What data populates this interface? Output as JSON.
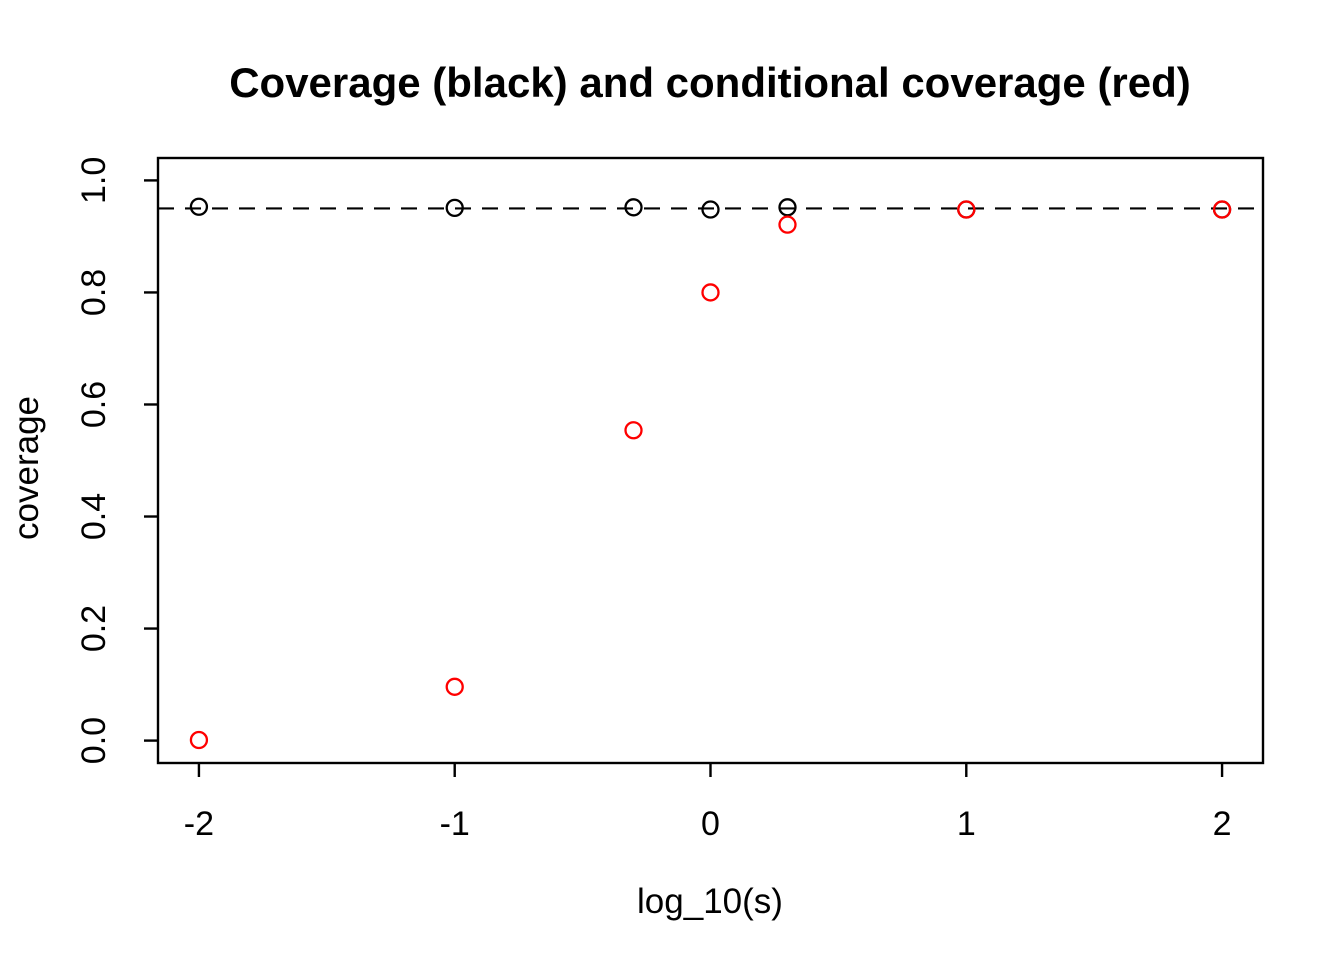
{
  "page": {
    "background_color": "#ffffff"
  },
  "chart_data": {
    "type": "scatter",
    "title": "Coverage (black) and conditional coverage (red)",
    "xlabel": "log_10(s)",
    "ylabel": "coverage",
    "xlim": [
      -2.16,
      2.16
    ],
    "ylim": [
      -0.04,
      1.04
    ],
    "grid": false,
    "legend_position": "none",
    "marker": "open-circle",
    "axis_color": "#000000",
    "x_ticks": [
      {
        "value": -2,
        "label": "-2"
      },
      {
        "value": -1,
        "label": "-1"
      },
      {
        "value": 0,
        "label": "0"
      },
      {
        "value": 1,
        "label": "1"
      },
      {
        "value": 2,
        "label": "2"
      }
    ],
    "y_ticks": [
      {
        "value": 0.0,
        "label": "0.0"
      },
      {
        "value": 0.2,
        "label": "0.2"
      },
      {
        "value": 0.4,
        "label": "0.4"
      },
      {
        "value": 0.6,
        "label": "0.6"
      },
      {
        "value": 0.8,
        "label": "0.8"
      },
      {
        "value": 1.0,
        "label": "1.0"
      }
    ],
    "reference_line": {
      "y": 0.95,
      "style": "dashed",
      "color": "#000000"
    },
    "series": [
      {
        "name": "coverage",
        "color": "#000000",
        "x": [
          -2,
          -1,
          -0.301,
          0,
          0.301,
          1,
          2
        ],
        "y": [
          0.953,
          0.951,
          0.952,
          0.948,
          0.952,
          0.948,
          0.948
        ]
      },
      {
        "name": "conditional-coverage",
        "color": "#FF0000",
        "x": [
          -2,
          -1,
          -0.301,
          0,
          0.301,
          1,
          2
        ],
        "y": [
          0.001,
          0.096,
          0.554,
          0.8,
          0.921,
          0.948,
          0.948
        ]
      }
    ]
  }
}
